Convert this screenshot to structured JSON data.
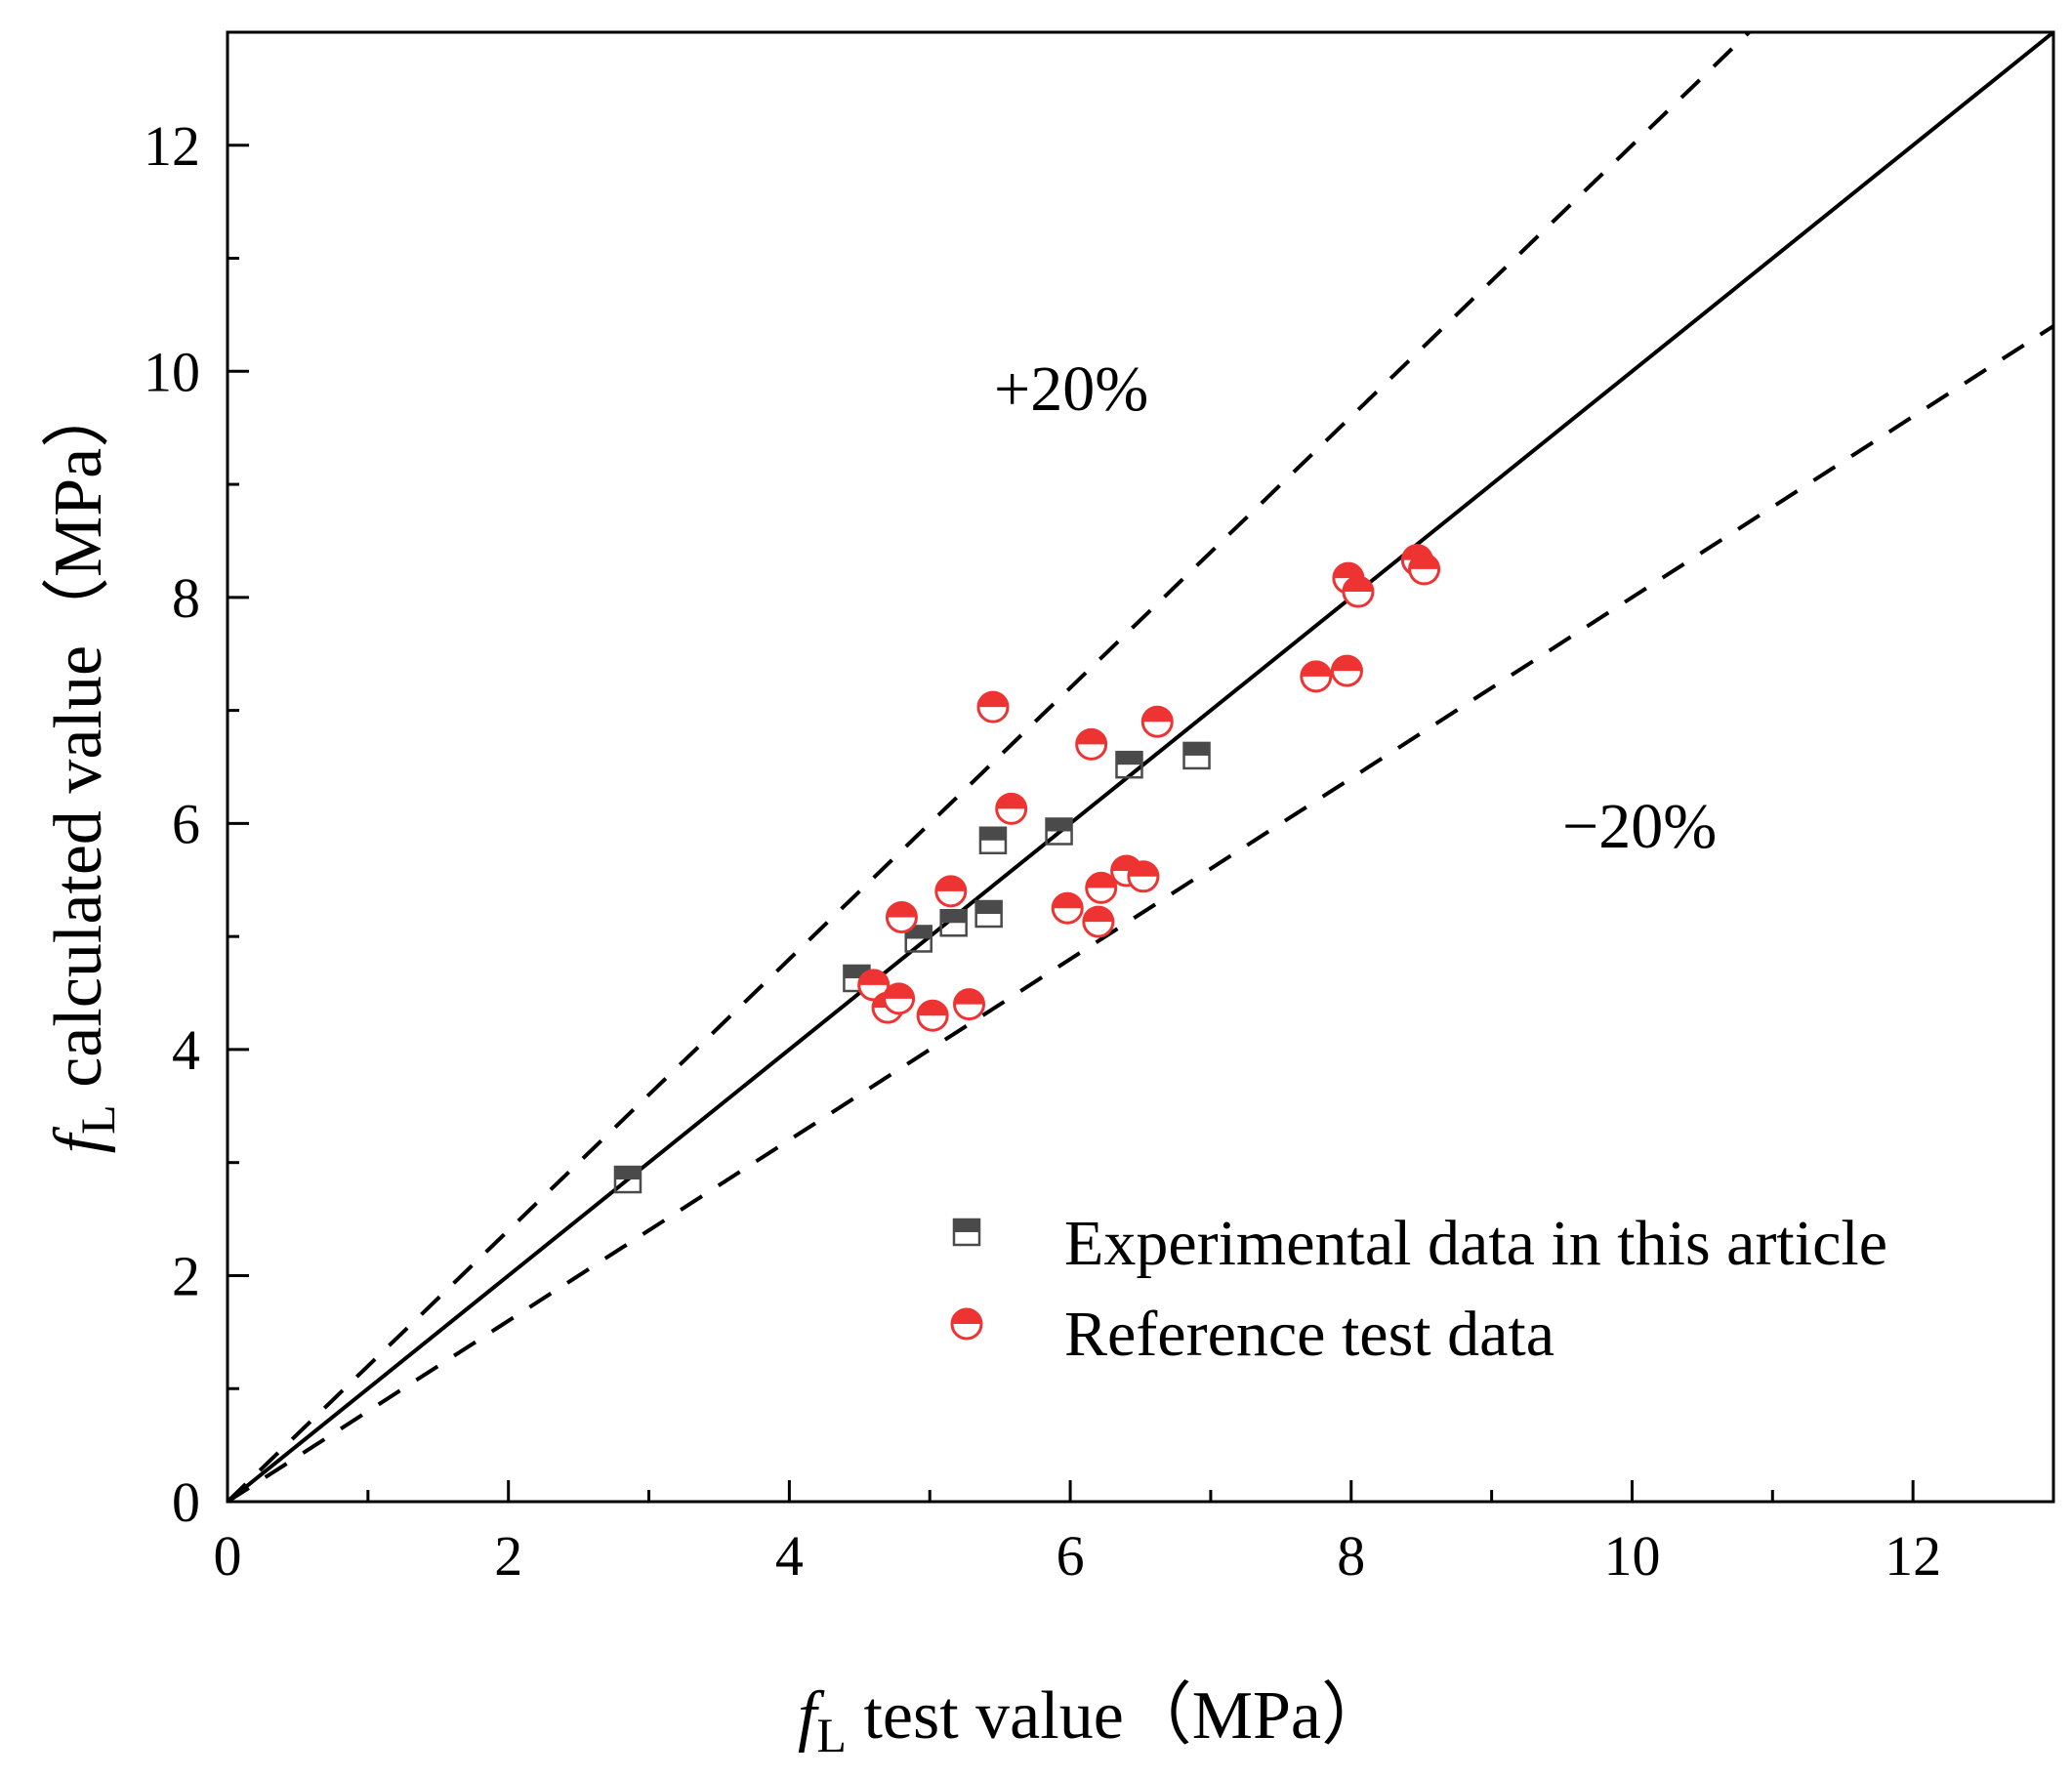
{
  "chart_data": {
    "type": "scatter",
    "title": "",
    "xlabel_sym": "f",
    "xlabel_sub": "L",
    "xlabel_rest": " test value（MPa）",
    "ylabel_sym": "f",
    "ylabel_sub": "L",
    "ylabel_rest": " calculated value（MPa）",
    "xlim": [
      0,
      13
    ],
    "ylim": [
      0,
      13
    ],
    "xticks": [
      0,
      2,
      4,
      6,
      8,
      10,
      12
    ],
    "yticks": [
      0,
      2,
      4,
      6,
      8,
      10,
      12
    ],
    "xtick_labels": [
      "0",
      "2",
      "4",
      "6",
      "8",
      "10",
      "12"
    ],
    "ytick_labels": [
      "0",
      "2",
      "4",
      "6",
      "8",
      "10",
      "12"
    ],
    "grid": false,
    "legend_position": "bottom-right",
    "reference_lines": [
      {
        "label": "",
        "slope": 1.0,
        "style": "solid"
      },
      {
        "label": "+20%",
        "slope": 1.2,
        "style": "dashed"
      },
      {
        "label": "−20%",
        "slope": 0.8,
        "style": "dashed"
      }
    ],
    "annotations": {
      "plus": "+20%",
      "minus": "−20%"
    },
    "series": [
      {
        "name": "Experimental data in this article",
        "marker": "square-half",
        "color": "#4a4a4a",
        "points": [
          [
            2.85,
            2.85
          ],
          [
            4.48,
            4.63
          ],
          [
            4.92,
            4.98
          ],
          [
            5.17,
            5.12
          ],
          [
            5.42,
            5.2
          ],
          [
            5.45,
            5.85
          ],
          [
            5.92,
            5.93
          ],
          [
            6.42,
            6.52
          ],
          [
            6.9,
            6.6
          ]
        ]
      },
      {
        "name": "Reference test data",
        "marker": "circle-half",
        "color": "#ee3333",
        "points": [
          [
            4.6,
            4.57
          ],
          [
            4.7,
            4.37
          ],
          [
            4.78,
            4.45
          ],
          [
            4.8,
            5.17
          ],
          [
            5.02,
            4.3
          ],
          [
            5.15,
            5.4
          ],
          [
            5.28,
            4.4
          ],
          [
            5.45,
            7.03
          ],
          [
            5.58,
            6.13
          ],
          [
            5.98,
            5.25
          ],
          [
            6.15,
            6.7
          ],
          [
            6.2,
            5.13
          ],
          [
            6.22,
            5.43
          ],
          [
            6.4,
            5.58
          ],
          [
            6.52,
            5.53
          ],
          [
            6.62,
            6.9
          ],
          [
            7.75,
            7.3
          ],
          [
            7.97,
            7.35
          ],
          [
            7.98,
            8.17
          ],
          [
            8.05,
            8.05
          ],
          [
            8.47,
            8.33
          ],
          [
            8.52,
            8.25
          ]
        ]
      }
    ]
  },
  "colors": {
    "square_fill": "#4a4a4a",
    "circle_fill": "#ee3333"
  }
}
